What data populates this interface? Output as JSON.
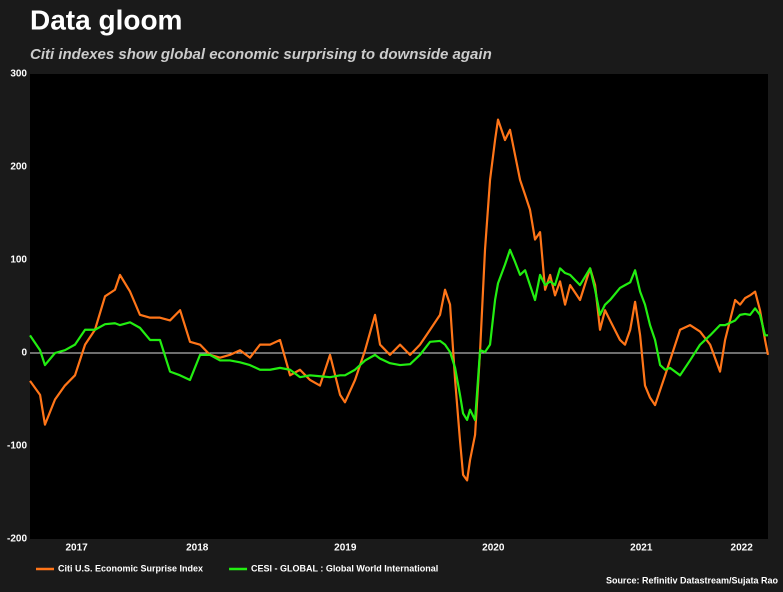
{
  "chart_data": {
    "type": "line",
    "title": "Data gloom",
    "subtitle": "Citi indexes show global economic surprising to downside again",
    "source": "Source: Refinitiv Datastream/Sujata Rao",
    "x": [
      2017.37,
      2017.438,
      2017.471,
      2017.539,
      2017.606,
      2017.674,
      2017.742,
      2017.809,
      2017.877,
      2017.944,
      2017.978,
      2018.046,
      2018.113,
      2018.181,
      2018.248,
      2018.316,
      2018.384,
      2018.451,
      2018.519,
      2018.586,
      2018.654,
      2018.721,
      2018.789,
      2018.856,
      2018.924,
      2018.992,
      2019.059,
      2019.127,
      2019.194,
      2019.262,
      2019.329,
      2019.397,
      2019.465,
      2019.498,
      2019.566,
      2019.634,
      2019.701,
      2019.735,
      2019.802,
      2019.87,
      2019.938,
      2020.005,
      2020.073,
      2020.14,
      2020.174,
      2020.208,
      2020.242,
      2020.275,
      2020.296,
      2020.323,
      2020.343,
      2020.377,
      2020.411,
      2020.444,
      2020.478,
      2020.512,
      2020.532,
      2020.579,
      2020.613,
      2020.647,
      2020.681,
      2020.715,
      2020.748,
      2020.782,
      2020.816,
      2020.85,
      2020.884,
      2020.917,
      2020.951,
      2020.985,
      2021.019,
      2021.086,
      2021.154,
      2021.188,
      2021.221,
      2021.255,
      2021.289,
      2021.356,
      2021.39,
      2021.425,
      2021.458,
      2021.492,
      2021.525,
      2021.559,
      2021.593,
      2021.627,
      2021.661,
      2021.694,
      2021.762,
      2021.829,
      2021.897,
      2021.965,
      2022.032,
      2022.066,
      2022.134,
      2022.167,
      2022.201,
      2022.235,
      2022.269,
      2022.302,
      2022.336,
      2022.356
    ],
    "series": [
      {
        "name": "Citi U.S. Economic Surprise Index",
        "color": "#ff7518",
        "values": [
          -30,
          -45,
          -77,
          -50,
          -35,
          -24,
          9,
          25,
          61,
          68,
          84,
          66,
          41,
          38,
          38,
          35,
          46,
          12,
          9,
          -2,
          -5,
          -2,
          3,
          -5,
          9,
          9,
          14,
          -24,
          -18,
          -29,
          -35,
          -2,
          -45,
          -53,
          -29,
          3,
          41,
          9,
          -2,
          9,
          -2,
          9,
          25,
          41,
          68,
          52,
          -29,
          -94,
          -131,
          -137,
          -115,
          -88,
          3,
          111,
          186,
          229,
          251,
          229,
          240,
          213,
          186,
          170,
          154,
          122,
          130,
          68,
          84,
          62,
          77,
          52,
          73,
          57,
          91,
          73,
          25,
          46,
          35,
          14,
          9,
          25,
          55,
          19,
          -35,
          -48,
          -56,
          -40,
          -24,
          -8,
          25,
          30,
          23,
          9,
          -20,
          14,
          57,
          52,
          59,
          62,
          66,
          46,
          14,
          -2
        ]
      },
      {
        "name": "CESI - GLOBAL : Global World International",
        "color": "#22ee11",
        "values": [
          19,
          3,
          -13,
          0,
          3,
          9,
          25,
          25,
          31,
          32,
          30,
          33,
          27,
          14,
          14,
          -20,
          -24,
          -29,
          -2,
          -2,
          -8,
          -8,
          -10,
          -13,
          -18,
          -18,
          -16,
          -18,
          -26,
          -24,
          -25,
          -26,
          -24,
          -24,
          -18,
          -8,
          -2,
          -6,
          -11,
          -13,
          -12,
          -2,
          12,
          13,
          9,
          1,
          -16,
          -45,
          -65,
          -72,
          -61,
          -72,
          3,
          1,
          9,
          57,
          75,
          95,
          111,
          98,
          84,
          89,
          73,
          57,
          84,
          73,
          77,
          73,
          91,
          86,
          84,
          73,
          91,
          68,
          41,
          52,
          57,
          70,
          73,
          76,
          89,
          66,
          52,
          30,
          14,
          -13,
          -18,
          -16,
          -24,
          -8,
          9,
          19,
          30,
          30,
          35,
          41,
          42,
          41,
          48,
          41,
          19,
          19
        ]
      }
    ],
    "xlim": [
      2017.37,
      2022.356
    ],
    "xticks": [
      2017,
      2018,
      2019,
      2020,
      2021,
      2022
    ],
    "ylim": [
      -200,
      300
    ],
    "yticks": [
      -200,
      -100,
      0,
      100,
      200,
      300
    ],
    "zero_line": true,
    "legend": "bottom-left"
  }
}
